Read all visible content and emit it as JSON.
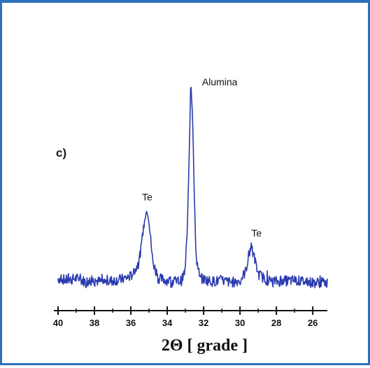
{
  "panel_label": "c)",
  "chart_data": {
    "type": "line",
    "title": "",
    "xlabel": "2Θ  [ grade ]",
    "ylabel": "",
    "xlim": [
      40,
      25.2
    ],
    "x_reversed": true,
    "ylim": [
      0,
      100
    ],
    "xticks": [
      40,
      38,
      36,
      34,
      32,
      30,
      28,
      26
    ],
    "minor_xticks": [
      39,
      37,
      35,
      33,
      31,
      29,
      27
    ],
    "grid": false,
    "legend": "none",
    "line_color": "#2a3bb0",
    "series": [
      {
        "values": [
          {
            "x": 40.0,
            "y": 6
          },
          {
            "x": 39.5,
            "y": 5
          },
          {
            "x": 39.0,
            "y": 6
          },
          {
            "x": 38.5,
            "y": 4.5
          },
          {
            "x": 38.0,
            "y": 5
          },
          {
            "x": 37.5,
            "y": 4
          },
          {
            "x": 37.0,
            "y": 5
          },
          {
            "x": 36.5,
            "y": 5.5
          },
          {
            "x": 36.0,
            "y": 7
          },
          {
            "x": 35.6,
            "y": 12
          },
          {
            "x": 35.4,
            "y": 22
          },
          {
            "x": 35.2,
            "y": 36
          },
          {
            "x": 35.1,
            "y": 38
          },
          {
            "x": 35.0,
            "y": 33
          },
          {
            "x": 34.8,
            "y": 14
          },
          {
            "x": 34.5,
            "y": 6
          },
          {
            "x": 34.0,
            "y": 5
          },
          {
            "x": 33.5,
            "y": 4.5
          },
          {
            "x": 33.2,
            "y": 5
          },
          {
            "x": 33.0,
            "y": 10
          },
          {
            "x": 32.9,
            "y": 28
          },
          {
            "x": 32.8,
            "y": 62
          },
          {
            "x": 32.7,
            "y": 100
          },
          {
            "x": 32.6,
            "y": 80
          },
          {
            "x": 32.5,
            "y": 40
          },
          {
            "x": 32.4,
            "y": 15
          },
          {
            "x": 32.2,
            "y": 6
          },
          {
            "x": 31.5,
            "y": 4.5
          },
          {
            "x": 31.0,
            "y": 5
          },
          {
            "x": 30.5,
            "y": 4
          },
          {
            "x": 30.0,
            "y": 5
          },
          {
            "x": 29.7,
            "y": 9
          },
          {
            "x": 29.5,
            "y": 17
          },
          {
            "x": 29.4,
            "y": 21
          },
          {
            "x": 29.2,
            "y": 15
          },
          {
            "x": 29.0,
            "y": 8
          },
          {
            "x": 28.5,
            "y": 5
          },
          {
            "x": 28.0,
            "y": 4.5
          },
          {
            "x": 27.0,
            "y": 5
          },
          {
            "x": 26.0,
            "y": 4
          },
          {
            "x": 25.2,
            "y": 4
          }
        ]
      }
    ],
    "annotations": [
      {
        "text": "Te",
        "x": 35.1,
        "y": 38
      },
      {
        "text": "Alumina",
        "x": 32.7,
        "y": 100
      },
      {
        "text": "Te",
        "x": 29.4,
        "y": 21
      }
    ]
  }
}
